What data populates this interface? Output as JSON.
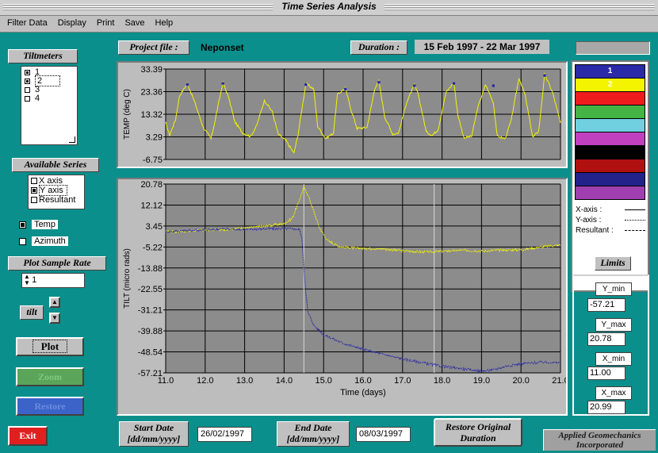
{
  "window": {
    "title": "Time Series Analysis"
  },
  "menu": [
    "Filter Data",
    "Display",
    "Print",
    "Save",
    "Help"
  ],
  "header": {
    "project_label": "Project file :",
    "project_value": "Neponset",
    "duration_label": "Duration :",
    "duration_value": "15 Feb 1997 - 22 Mar 1997"
  },
  "tiltmeters": {
    "label": "Tiltmeters",
    "items": [
      {
        "label": "1",
        "checked": true
      },
      {
        "label": "2",
        "checked": true
      },
      {
        "label": "3",
        "checked": false
      },
      {
        "label": "4",
        "checked": false
      }
    ]
  },
  "series": {
    "label": "Available Series",
    "items": [
      {
        "label": "X axis",
        "checked": false
      },
      {
        "label": "Y axis",
        "checked": true
      },
      {
        "label": "Resultant",
        "checked": false
      }
    ]
  },
  "options": {
    "temp_label": "Temp",
    "temp_checked": true,
    "azimuth_label": "Azimuth",
    "azimuth_checked": false
  },
  "sample_rate": {
    "label": "Plot Sample Rate",
    "value": "1"
  },
  "tilt_label": "tilt",
  "buttons": {
    "plot": "Plot",
    "zoom": "Zoom",
    "restore": "Restore",
    "exit": "Exit",
    "restore_duration": "Restore Original Duration"
  },
  "dates": {
    "start_label": "Start Date [dd/mm/yyyy]",
    "start_value": "26/02/1997",
    "end_label": "End Date [dd/mm/yyyy]",
    "end_value": "08/03/1997"
  },
  "company": "Applied Geomechanics Incorporated",
  "legend": {
    "swatches": [
      {
        "label": "1",
        "color": "#2a2aa8"
      },
      {
        "label": "2",
        "color": "#f4f400"
      },
      {
        "label": "",
        "color": "#ee1c1c"
      },
      {
        "label": "",
        "color": "#44b444"
      },
      {
        "label": "",
        "color": "#70d0e0"
      },
      {
        "label": "",
        "color": "#c040c0"
      },
      {
        "label": "",
        "color": "#000000"
      },
      {
        "label": "",
        "color": "#b01010"
      },
      {
        "label": "",
        "color": "#22228a"
      },
      {
        "label": "",
        "color": "#a040b0"
      }
    ],
    "lines": [
      {
        "label": "X-axis",
        "sep": ":"
      },
      {
        "label": "Y-axis",
        "sep": ":"
      },
      {
        "label": "Resultant :",
        "sep": ""
      }
    ]
  },
  "limits": {
    "label": "Limits",
    "y_min_label": "Y_min",
    "y_min": "-57.21",
    "y_max_label": "Y_max",
    "y_max": "20.78",
    "x_min_label": "X_min",
    "x_min": "11.00",
    "x_max_label": "X_max",
    "x_max": "20.99"
  },
  "chart_data": [
    {
      "type": "line",
      "ylabel": "TEMP (deg C)",
      "yticks": [
        "33.39",
        "23.36",
        "13.32",
        "3.29",
        "-6.75"
      ],
      "ylim": [
        -6.75,
        33.39
      ],
      "xlim": [
        11.0,
        21.0
      ],
      "series": [
        {
          "color": "#f4f400",
          "x": [
            11.0,
            11.1,
            11.25,
            11.35,
            11.55,
            11.75,
            11.95,
            12.15,
            12.25,
            12.45,
            12.6,
            12.75,
            12.95,
            13.15,
            13.3,
            13.5,
            13.7,
            13.85,
            14.05,
            14.25,
            14.35,
            14.55,
            14.75,
            14.85,
            15.05,
            15.25,
            15.35,
            15.55,
            15.7,
            15.85,
            16.1,
            16.3,
            16.4,
            16.55,
            16.75,
            16.9,
            17.1,
            17.3,
            17.4,
            17.6,
            17.75,
            17.9,
            18.1,
            18.3,
            18.4,
            18.55,
            18.75,
            18.9,
            19.1,
            19.3,
            19.4,
            19.6,
            19.75,
            19.95,
            20.1,
            20.3,
            20.45,
            20.6,
            20.8,
            21.0
          ],
          "y": [
            9.5,
            4.0,
            11.0,
            21.5,
            27.0,
            18.0,
            7.5,
            2.5,
            10.5,
            27.5,
            20.5,
            10.0,
            5.0,
            3.5,
            8.0,
            19.5,
            14.5,
            4.5,
            1.5,
            -4.0,
            4.0,
            27.0,
            24.5,
            8.0,
            2.5,
            5.0,
            22.0,
            25.0,
            15.0,
            7.0,
            7.5,
            25.0,
            28.0,
            12.0,
            4.5,
            5.0,
            18.5,
            26.5,
            22.0,
            5.5,
            4.0,
            6.5,
            23.0,
            27.5,
            13.0,
            3.0,
            3.5,
            16.0,
            26.5,
            18.5,
            3.5,
            2.5,
            10.5,
            29.5,
            22.0,
            3.0,
            6.0,
            31.0,
            23.0,
            9.5
          ]
        },
        {
          "color": "#2a2aa8",
          "x": [
            11.55,
            12.45,
            14.55,
            15.55,
            16.4,
            17.3,
            18.3,
            19.3,
            20.6
          ],
          "y": [
            26.5,
            27.0,
            26.5,
            24.5,
            27.5,
            26.0,
            27.0,
            26.0,
            30.5
          ]
        }
      ]
    },
    {
      "type": "line",
      "xlabel": "Time (days)",
      "ylabel": "TILT (micro rads)",
      "yticks": [
        "20.78",
        "12.12",
        "3.45",
        "-5.22",
        "-13.88",
        "-22.55",
        "-31.21",
        "-39.88",
        "-48.54",
        "-57.21"
      ],
      "xticks": [
        "11.0",
        "12.0",
        "13.0",
        "14.0",
        "15.0",
        "16.0",
        "17.0",
        "18.0",
        "19.0",
        "20.0",
        "21.0"
      ],
      "ylim": [
        -57.21,
        20.78
      ],
      "xlim": [
        11.0,
        21.0
      ],
      "series": [
        {
          "color": "#f4f400",
          "x": [
            11.0,
            11.5,
            12.0,
            12.5,
            13.0,
            13.5,
            14.0,
            14.2,
            14.35,
            14.5,
            14.6,
            14.75,
            14.9,
            15.1,
            15.4,
            15.8,
            16.5,
            17.0,
            17.5,
            18.0,
            18.5,
            19.0,
            19.5,
            20.0,
            20.5,
            21.0
          ],
          "y": [
            1.0,
            1.2,
            1.8,
            2.0,
            2.6,
            3.4,
            4.5,
            6.5,
            12.5,
            19.5,
            16.5,
            9.5,
            2.5,
            -2.5,
            -5.0,
            -5.7,
            -6.0,
            -6.8,
            -7.3,
            -7.0,
            -6.6,
            -6.9,
            -6.5,
            -6.4,
            -5.2,
            -4.4
          ]
        },
        {
          "color": "#2a2aa8",
          "x": [
            11.0,
            11.5,
            12.0,
            12.5,
            13.0,
            13.5,
            14.0,
            14.3,
            14.4,
            14.45,
            14.5,
            14.55,
            14.6,
            14.75,
            15.0,
            15.5,
            16.0,
            16.5,
            17.0,
            17.5,
            18.0,
            18.5,
            19.0,
            19.3,
            19.6,
            20.0,
            20.5,
            21.0
          ],
          "y": [
            1.0,
            1.6,
            1.9,
            2.2,
            2.0,
            2.3,
            2.4,
            2.2,
            1.8,
            -2.0,
            -13.5,
            -24.0,
            -32.0,
            -37.5,
            -41.5,
            -45.0,
            -47.5,
            -49.5,
            -51.5,
            -53.0,
            -54.5,
            -55.5,
            -56.5,
            -56.0,
            -54.5,
            -53.5,
            -52.8,
            -53.0
          ]
        }
      ],
      "cursor_x": [
        14.5,
        17.8
      ]
    }
  ]
}
